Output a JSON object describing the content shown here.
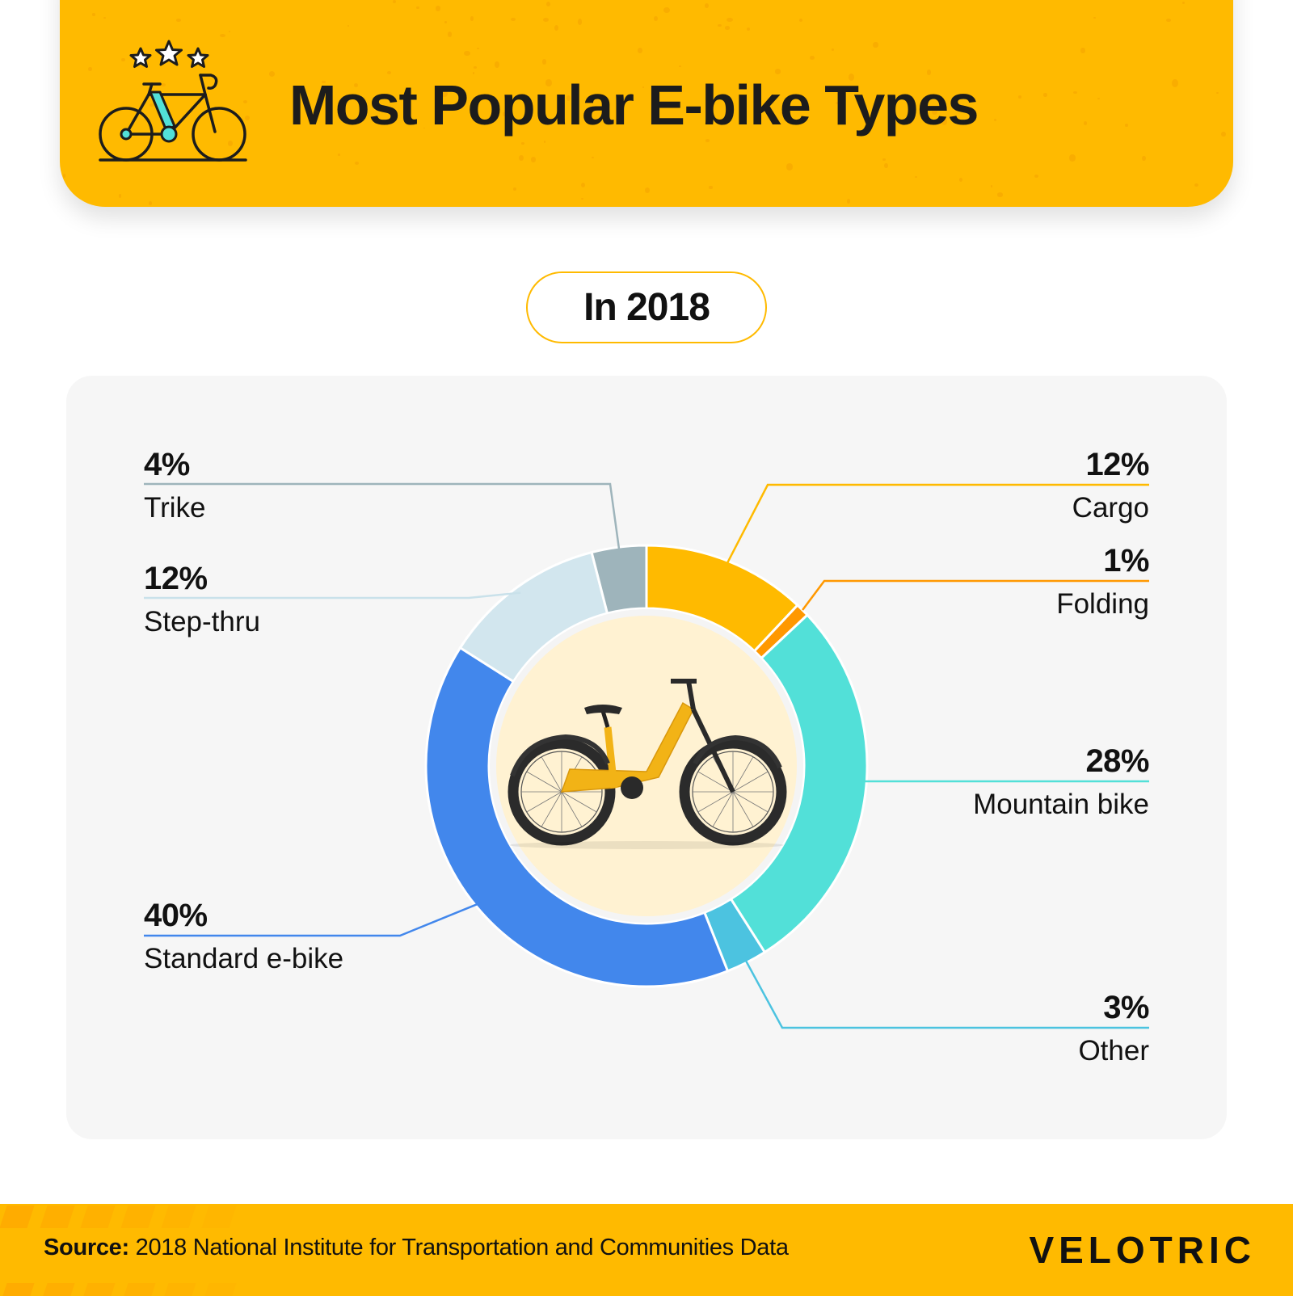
{
  "header": {
    "title": "Most Popular E-bike Types",
    "icon": "bicycle-with-stars-icon",
    "background_color": "#FFBA00"
  },
  "year_pill": {
    "label": "In 2018"
  },
  "chart_data": {
    "type": "pie",
    "variant": "donut",
    "title": "Most Popular E-bike Types",
    "subtitle": "In 2018",
    "start_angle": "top, clockwise",
    "slices": [
      {
        "label": "Cargo",
        "value": 12,
        "display": "12%",
        "color": "#FFBA00",
        "side": "right"
      },
      {
        "label": "Folding",
        "value": 1,
        "display": "1%",
        "color": "#FF9800",
        "side": "right"
      },
      {
        "label": "Mountain bike",
        "value": 28,
        "display": "28%",
        "color": "#52E0D8",
        "side": "right"
      },
      {
        "label": "Other",
        "value": 3,
        "display": "3%",
        "color": "#4CC3E0",
        "side": "right"
      },
      {
        "label": "Standard e-bike",
        "value": 40,
        "display": "40%",
        "color": "#4287EC",
        "side": "left"
      },
      {
        "label": "Step-thru",
        "value": 12,
        "display": "12%",
        "color": "#D2E6EE",
        "side": "left"
      },
      {
        "label": "Trike",
        "value": 4,
        "display": "4%",
        "color": "#9EB4BB",
        "side": "left"
      }
    ],
    "center_image": "yellow step-thru e-bike photo",
    "center_fill": "#FFF2D2",
    "unit": "%"
  },
  "footer": {
    "source_label": "Source:",
    "source_text": "2018 National Institute for Transportation and Communities Data",
    "brand": "VELOTRIC"
  }
}
